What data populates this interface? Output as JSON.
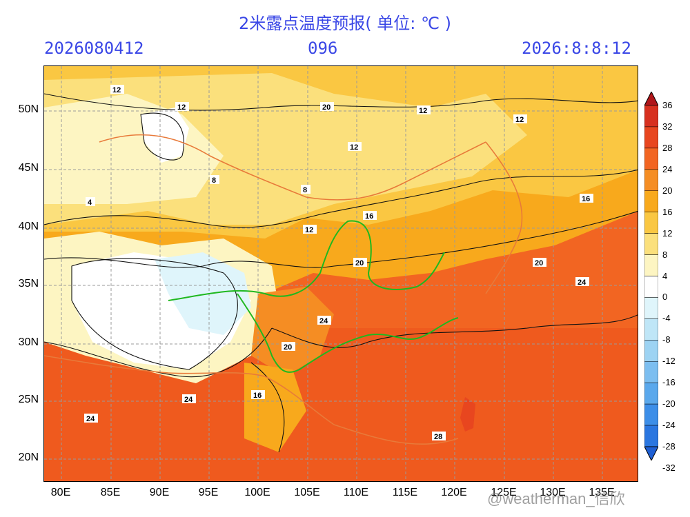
{
  "header": {
    "title": "2米露点温度预报( 单位: ℃ )",
    "init_time": "2026080412",
    "forecast_hour": "096",
    "valid_time": "2026:8:8:12"
  },
  "map": {
    "lat_labels": [
      "50N",
      "45N",
      "40N",
      "35N",
      "30N",
      "25N",
      "20N"
    ],
    "lon_labels": [
      "80E",
      "85E",
      "90E",
      "95E",
      "100E",
      "105E",
      "110E",
      "115E",
      "120E",
      "125E",
      "130E",
      "135E"
    ],
    "contour_labels": [
      "4",
      "8",
      "12",
      "16",
      "20",
      "24",
      "28"
    ]
  },
  "colorbar": {
    "levels": [
      "36",
      "32",
      "28",
      "24",
      "20",
      "16",
      "12",
      "8",
      "4",
      "0",
      "-4",
      "-8",
      "-12",
      "-16",
      "-20",
      "-24",
      "-28",
      "-32"
    ],
    "colors": [
      "#b0161a",
      "#d7301f",
      "#e8461f",
      "#f26522",
      "#f58d23",
      "#f8a91c",
      "#fac742",
      "#fbe07c",
      "#fdf5c2",
      "#ffffff",
      "#dff5fb",
      "#bfe6f7",
      "#9dd3f3",
      "#7cbef0",
      "#5aa8ec",
      "#3c8ee8",
      "#2a76e0",
      "#1e5fd3"
    ]
  },
  "watermark": "@weatherman_信欣"
}
